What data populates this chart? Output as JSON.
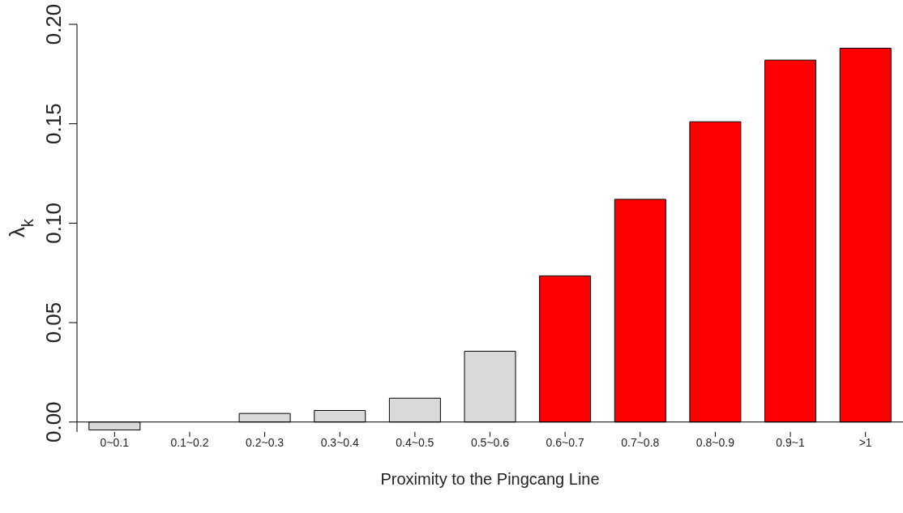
{
  "chart_data": {
    "type": "bar",
    "xlabel": "Proximity to the Pingcang Line",
    "ylabel": "λ$_{k}$",
    "categories": [
      "0~0.1",
      "0.1~0.2",
      "0.2~0.3",
      "0.3~0.4",
      "0.4~0.5",
      "0.5~0.6",
      "0.6~0.7",
      "0.7~0.8",
      "0.8~0.9",
      "0.9~1",
      ">1"
    ],
    "values": [
      -0.004,
      0,
      0.0043,
      0.0058,
      0.012,
      0.0356,
      0.0735,
      0.112,
      0.151,
      0.182,
      0.188
    ],
    "colors": [
      "#d9d9d9",
      "#d9d9d9",
      "#d9d9d9",
      "#d9d9d9",
      "#d9d9d9",
      "#d9d9d9",
      "#ff0000",
      "#ff0000",
      "#ff0000",
      "#ff0000",
      "#ff0000"
    ],
    "ylim": [
      -0.005,
      0.2
    ],
    "yticks": [
      {
        "value": 0,
        "label": "0.00"
      },
      {
        "value": 0.05,
        "label": "0.05"
      },
      {
        "value": 0.1,
        "label": "0.10"
      },
      {
        "value": 0.15,
        "label": "0.15"
      },
      {
        "value": 0.2,
        "label": "0.20"
      }
    ],
    "grid": false,
    "legend": false
  }
}
